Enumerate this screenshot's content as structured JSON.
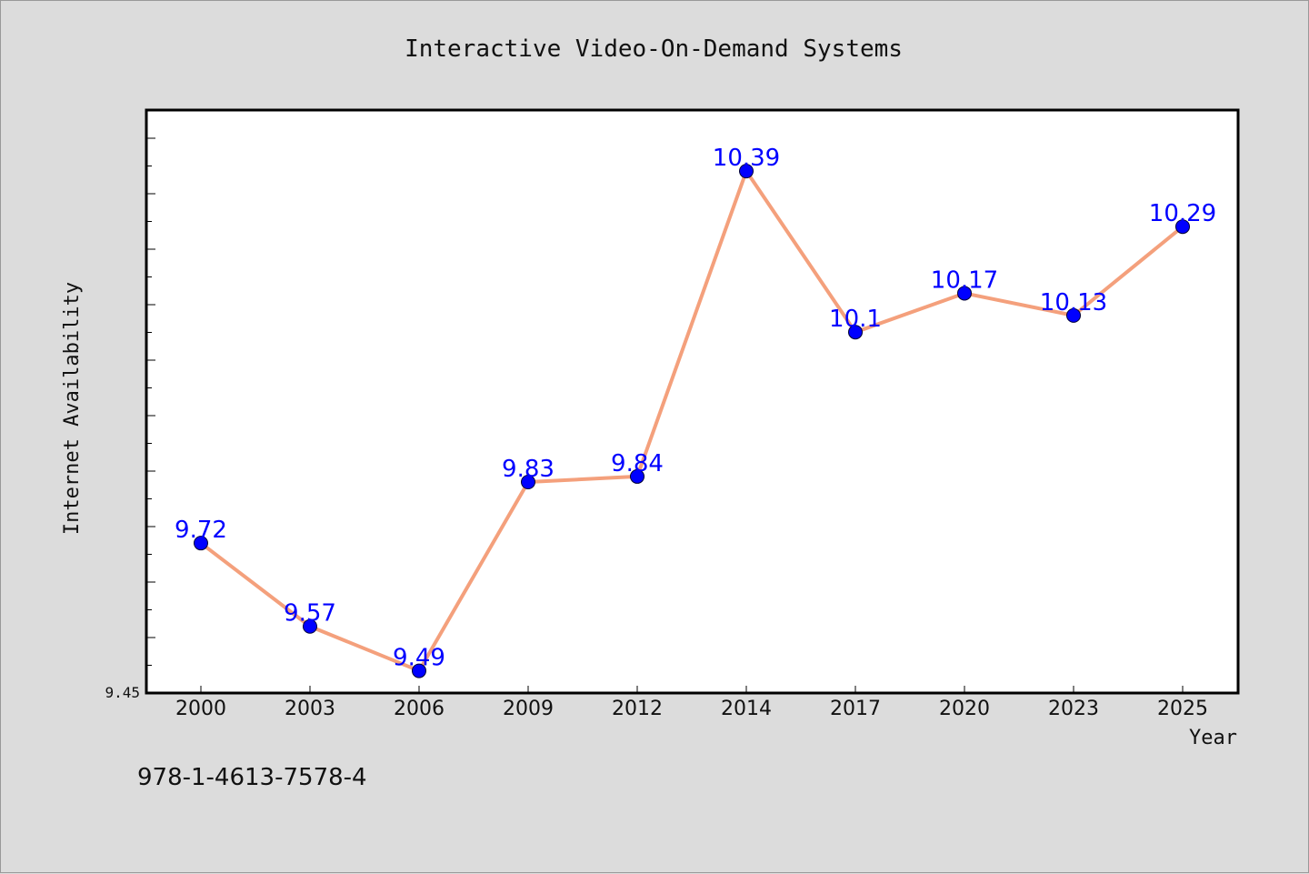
{
  "chart_data": {
    "type": "line",
    "title": "Interactive Video-On-Demand Systems",
    "xlabel": "Year",
    "ylabel": "Internet Availability",
    "categories": [
      "2000",
      "2003",
      "2006",
      "2009",
      "2012",
      "2014",
      "2017",
      "2020",
      "2023",
      "2025"
    ],
    "series": [
      {
        "values": [
          9.72,
          9.57,
          9.49,
          9.83,
          9.84,
          10.39,
          10.1,
          10.17,
          10.13,
          10.29
        ],
        "labels": [
          "9.72",
          "9.57",
          "9.49",
          "9.83",
          "9.84",
          "10.39",
          "10.1",
          "10.17",
          "10.13",
          "10.29"
        ],
        "line_color": "#f4a07c",
        "marker_color": "#0000ff"
      }
    ],
    "ylim": [
      9.45,
      10.5
    ],
    "y_tick_labels": [
      "9.45"
    ],
    "grid": false,
    "legend": "none"
  },
  "footer": {
    "isbn": "978-1-4613-7578-4"
  }
}
